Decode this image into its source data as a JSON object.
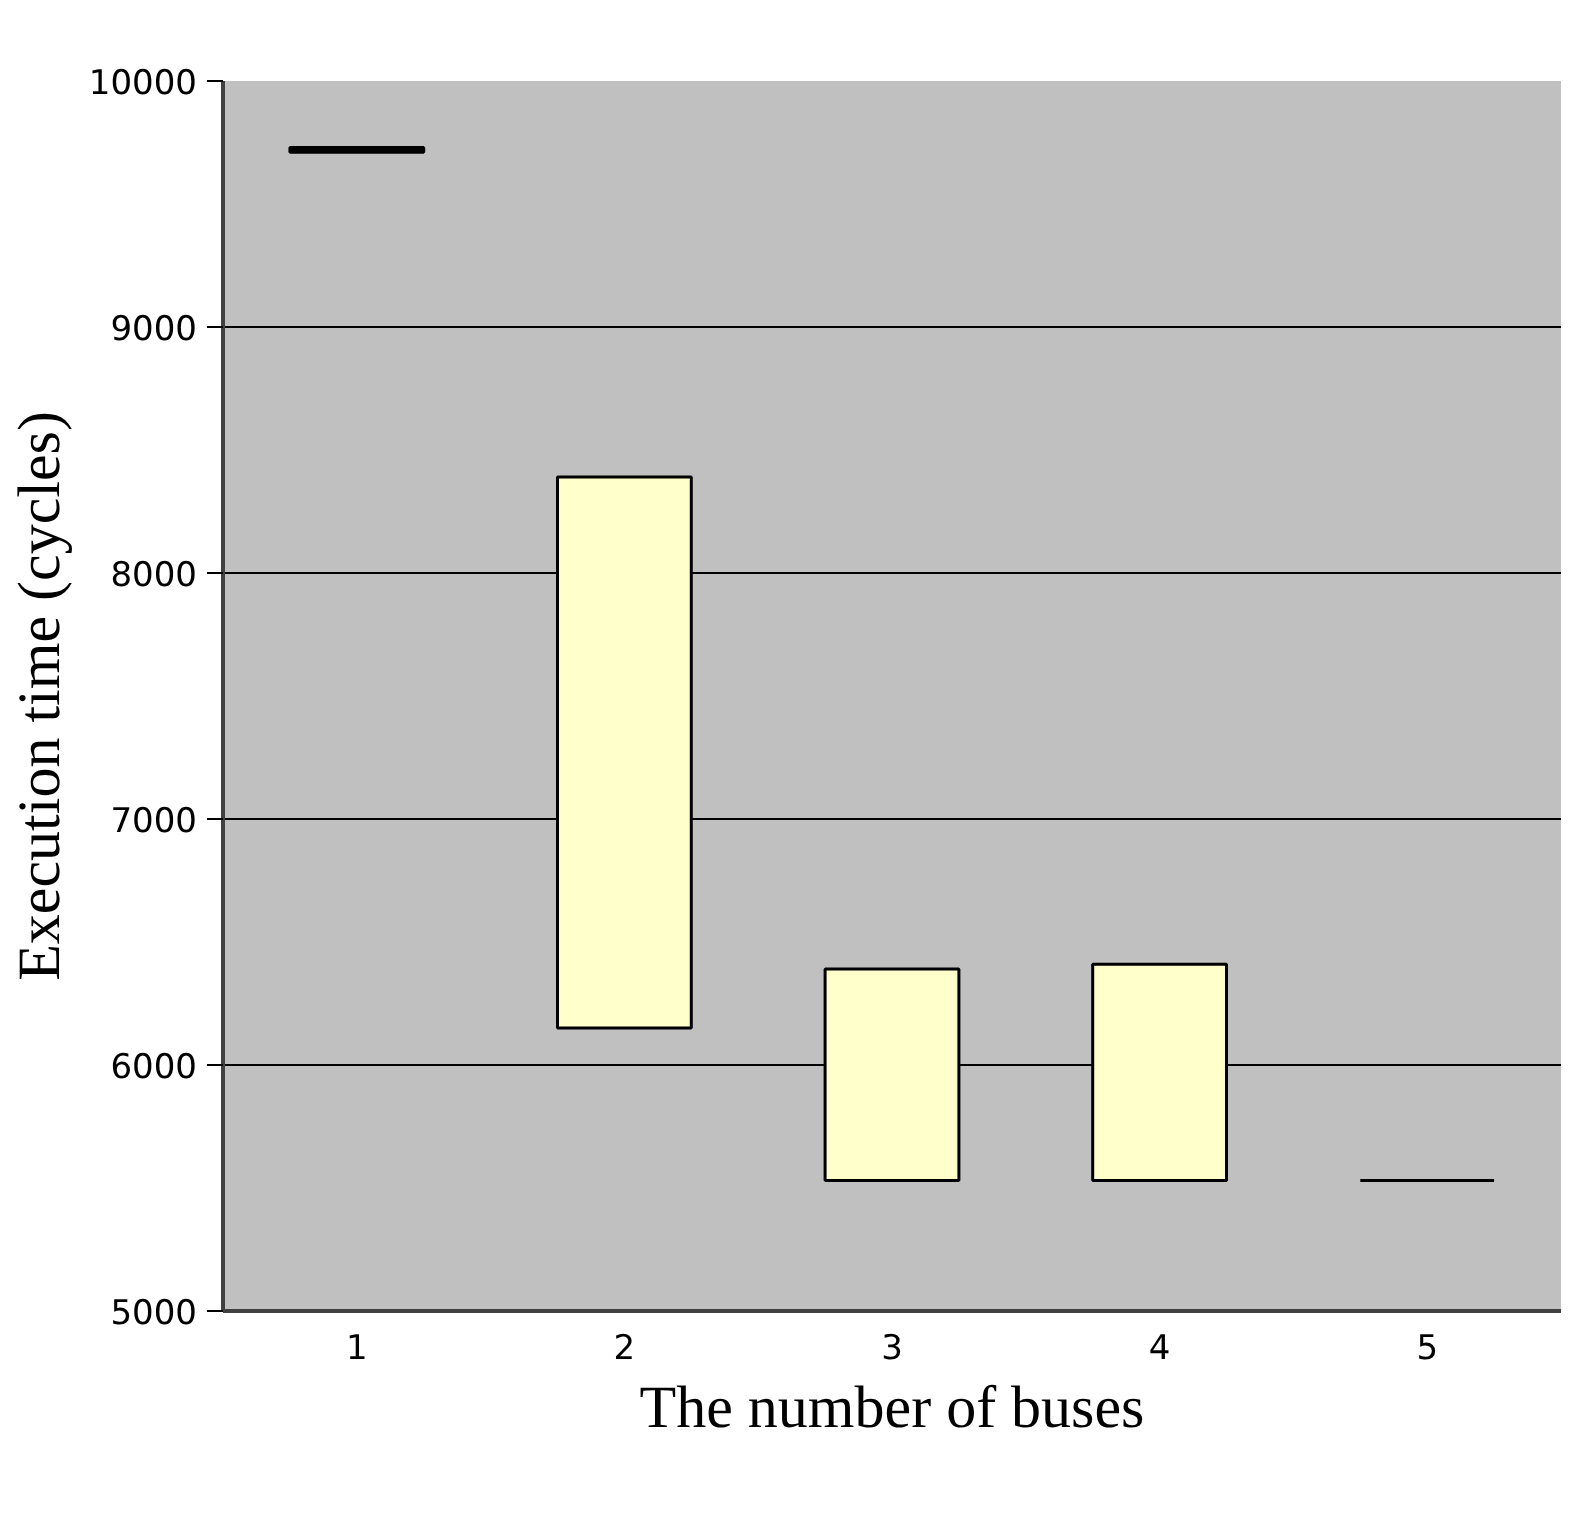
{
  "chart_data": {
    "type": "bar",
    "xlabel": "The number of buses",
    "ylabel": "Execution time (cycles)",
    "categories": [
      "1",
      "2",
      "3",
      "4",
      "5"
    ],
    "base": [
      9710,
      6150,
      5530,
      5530,
      5530
    ],
    "values": [
      20,
      2240,
      860,
      880,
      0
    ],
    "colors": [
      "#000000",
      "#ffffcc",
      "#ffffcc",
      "#ffffcc",
      "#000000"
    ],
    "ylim": [
      5000,
      10000
    ],
    "yticks": [
      5000,
      6000,
      7000,
      8000,
      9000,
      10000
    ],
    "grid": "y"
  }
}
